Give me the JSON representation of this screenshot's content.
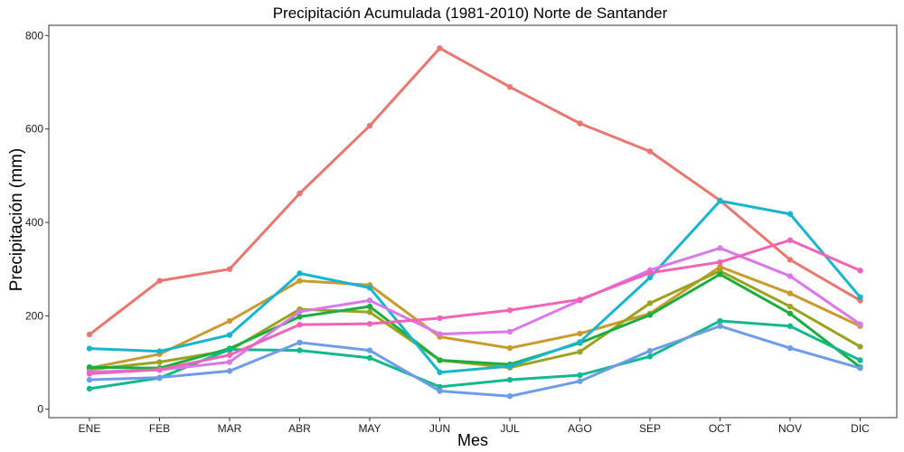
{
  "chart_data": {
    "type": "line",
    "title": "Precipitación Acumulada (1981-2010)  Norte de Santander",
    "xlabel": "Mes",
    "ylabel": "Precipitación  (mm)",
    "categories": [
      "ENE",
      "FEB",
      "MAR",
      "ABR",
      "MAY",
      "JUN",
      "JUL",
      "AGO",
      "SEP",
      "OCT",
      "NOV",
      "DIC"
    ],
    "yticks": [
      "0",
      "200",
      "400",
      "600",
      "800"
    ],
    "ylim": [
      -18,
      822
    ],
    "grid": false,
    "legend": "none",
    "series": [
      {
        "color": "#E7776F",
        "values": [
          160,
          275,
          300,
          462,
          607,
          773,
          690,
          612,
          552,
          447,
          320,
          233
        ]
      },
      {
        "color": "#C99A2E",
        "values": [
          88,
          118,
          189,
          275,
          266,
          155,
          131,
          162,
          205,
          305,
          248,
          178
        ]
      },
      {
        "color": "#9AA31E",
        "values": [
          85,
          101,
          126,
          214,
          208,
          105,
          89,
          123,
          227,
          296,
          220,
          134
        ]
      },
      {
        "color": "#1BAE3E",
        "values": [
          90,
          88,
          130,
          198,
          220,
          105,
          96,
          142,
          202,
          289,
          205,
          90
        ]
      },
      {
        "color": "#14B88E",
        "values": [
          44,
          67,
          128,
          126,
          110,
          48,
          63,
          73,
          113,
          189,
          178,
          105
        ]
      },
      {
        "color": "#19B5CE",
        "values": [
          130,
          124,
          159,
          291,
          260,
          79,
          92,
          144,
          282,
          446,
          418,
          240
        ]
      },
      {
        "color": "#6E9CE6",
        "values": [
          63,
          68,
          82,
          143,
          126,
          39,
          28,
          60,
          125,
          178,
          131,
          88
        ]
      },
      {
        "color": "#DA77E9",
        "values": [
          80,
          84,
          101,
          209,
          233,
          161,
          166,
          233,
          298,
          345,
          285,
          182
        ]
      },
      {
        "color": "#F064B7",
        "values": [
          76,
          85,
          116,
          181,
          183,
          195,
          212,
          235,
          292,
          315,
          362,
          297
        ]
      }
    ]
  }
}
